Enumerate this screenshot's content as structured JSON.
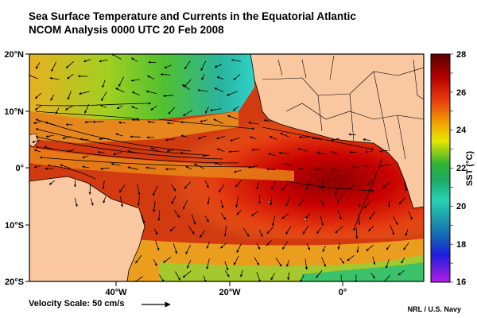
{
  "title": {
    "line1": "Sea Surface Temperature and Currents in the Equatorial Atlantic",
    "line2": "NCOM Analysis 0000 UTC 20 Feb 2008"
  },
  "axes": {
    "lat_labels": [
      "20°N",
      "10°N",
      "0°",
      "10°S",
      "20°S"
    ],
    "lon_labels": [
      "40°W",
      "20°W",
      "0°"
    ]
  },
  "colorbar": {
    "label": "SST (°C)",
    "ticks": [
      "28",
      "26",
      "24",
      "22",
      "20",
      "18",
      "16"
    ],
    "range": [
      16,
      28
    ]
  },
  "velocity_scale": "Velocity Scale: 50 cm/s",
  "credit": "NRL / U.S. Navy",
  "colors": {
    "land": "#f9c7a0",
    "warm": "#c80000",
    "cool": "#1ec8a0"
  }
}
